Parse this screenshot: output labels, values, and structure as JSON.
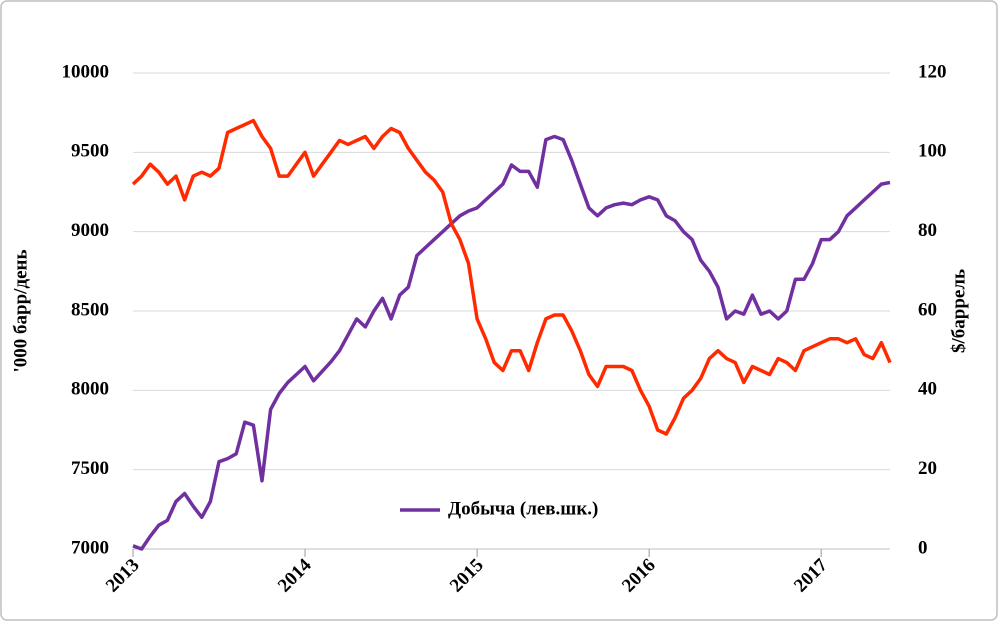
{
  "chart_data": {
    "type": "line",
    "y_label": "'000 барр/день",
    "y2_label": "$/баррель",
    "x": [
      2013.0,
      2013.05,
      2013.1,
      2013.15,
      2013.2,
      2013.25,
      2013.3,
      2013.35,
      2013.4,
      2013.45,
      2013.5,
      2013.55,
      2013.6,
      2013.65,
      2013.7,
      2013.75,
      2013.8,
      2013.85,
      2013.9,
      2013.95,
      2014.0,
      2014.05,
      2014.1,
      2014.15,
      2014.2,
      2014.25,
      2014.3,
      2014.35,
      2014.4,
      2014.45,
      2014.5,
      2014.55,
      2014.6,
      2014.65,
      2014.7,
      2014.75,
      2014.8,
      2014.85,
      2014.9,
      2014.95,
      2015.0,
      2015.05,
      2015.1,
      2015.15,
      2015.2,
      2015.25,
      2015.3,
      2015.35,
      2015.4,
      2015.45,
      2015.5,
      2015.55,
      2015.6,
      2015.65,
      2015.7,
      2015.75,
      2015.8,
      2015.85,
      2015.9,
      2015.95,
      2016.0,
      2016.05,
      2016.1,
      2016.15,
      2016.2,
      2016.25,
      2016.3,
      2016.35,
      2016.4,
      2016.45,
      2016.5,
      2016.55,
      2016.6,
      2016.65,
      2016.7,
      2016.75,
      2016.8,
      2016.85,
      2016.9,
      2016.95,
      2017.0,
      2017.05,
      2017.1,
      2017.15,
      2017.2,
      2017.25,
      2017.3,
      2017.35,
      2017.4
    ],
    "series": [
      {
        "name": "Добыча (лев.шк.)",
        "color": "#7030a0",
        "values": [
          7020,
          7000,
          7080,
          7150,
          7180,
          7300,
          7350,
          7270,
          7200,
          7300,
          7550,
          7570,
          7600,
          7800,
          7780,
          7430,
          7880,
          7980,
          8050,
          8100,
          8150,
          8060,
          8120,
          8180,
          8250,
          8350,
          8450,
          8400,
          8500,
          8580,
          8450,
          8600,
          8650,
          8850,
          8900,
          8950,
          9000,
          9050,
          9100,
          9130,
          9150,
          9200,
          9250,
          9300,
          9420,
          9380,
          9380,
          9280,
          9580,
          9600,
          9580,
          9450,
          9300,
          9150,
          9100,
          9150,
          9170,
          9180,
          9170,
          9200,
          9220,
          9200,
          9100,
          9070,
          9000,
          8950,
          8820,
          8750,
          8650,
          8450,
          8500,
          8480,
          8600,
          8480,
          8500,
          8450,
          8500,
          8700,
          8700,
          8800,
          8950,
          8950,
          9000,
          9100,
          9150,
          9200,
          9250,
          9300,
          9310
        ]
      },
      {
        "color": "#ff2a00",
        "axis": "y2",
        "values": [
          92,
          94,
          97,
          95,
          92,
          94,
          88,
          94,
          95,
          94,
          96,
          105,
          106,
          107,
          108,
          104,
          101,
          94,
          94,
          97,
          100,
          94,
          97,
          100,
          103,
          102,
          103,
          104,
          101,
          104,
          106,
          105,
          101,
          98,
          95,
          93,
          90,
          82,
          78,
          72,
          58,
          53,
          47,
          45,
          50,
          50,
          45,
          52,
          58,
          59,
          59,
          55,
          50,
          44,
          41,
          46,
          46,
          46,
          45,
          40,
          36,
          30,
          29,
          33,
          38,
          40,
          43,
          48,
          50,
          48,
          47,
          42,
          46,
          45,
          44,
          48,
          47,
          45,
          50,
          51,
          52,
          53,
          53,
          52,
          53,
          49,
          48,
          52,
          47
        ]
      }
    ],
    "xlim": [
      2013,
      2017.4
    ],
    "xticks": [
      2013,
      2014,
      2015,
      2016,
      2017
    ],
    "ylim": [
      7000,
      10000
    ],
    "yticks": [
      7000,
      7500,
      8000,
      8500,
      9000,
      9500,
      10000
    ],
    "y2lim": [
      0,
      120
    ],
    "y2ticks": [
      0,
      20,
      40,
      60,
      80,
      100,
      120
    ],
    "grid": true
  }
}
